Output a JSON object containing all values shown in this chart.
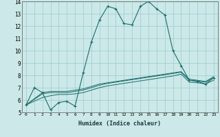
{
  "xlabel": "Humidex (Indice chaleur)",
  "bg_color": "#cce8e8",
  "grid_color": "#99cccc",
  "line_color": "#1a6b6b",
  "xlim": [
    -0.5,
    23.5
  ],
  "ylim": [
    5,
    14
  ],
  "xticks": [
    0,
    1,
    2,
    3,
    4,
    5,
    6,
    7,
    8,
    9,
    10,
    11,
    12,
    13,
    14,
    15,
    16,
    17,
    18,
    19,
    20,
    21,
    22,
    23
  ],
  "yticks": [
    5,
    6,
    7,
    8,
    9,
    10,
    11,
    12,
    13,
    14
  ],
  "line1_x": [
    0,
    1,
    2,
    3,
    4,
    5,
    6,
    7,
    8,
    9,
    10,
    11,
    12,
    13,
    14,
    15,
    16,
    17,
    18,
    19,
    20,
    21,
    22,
    23
  ],
  "line1_y": [
    5.6,
    7.0,
    6.6,
    5.2,
    5.8,
    5.9,
    5.5,
    8.2,
    10.7,
    12.5,
    13.6,
    13.4,
    12.2,
    12.1,
    13.6,
    14.0,
    13.4,
    12.9,
    10.0,
    8.8,
    7.6,
    7.5,
    7.3,
    7.8
  ],
  "line2_x": [
    0,
    2,
    3,
    4,
    5,
    6,
    7,
    8,
    9,
    10,
    11,
    12,
    13,
    14,
    15,
    16,
    17,
    18,
    19,
    20,
    21,
    22,
    23
  ],
  "line2_y": [
    5.6,
    6.6,
    6.7,
    6.7,
    6.7,
    6.8,
    6.9,
    7.1,
    7.3,
    7.4,
    7.5,
    7.6,
    7.7,
    7.8,
    7.9,
    8.0,
    8.1,
    8.2,
    8.3,
    7.7,
    7.6,
    7.5,
    7.9
  ],
  "line3_x": [
    0,
    2,
    3,
    4,
    5,
    6,
    7,
    8,
    9,
    10,
    11,
    12,
    13,
    14,
    15,
    16,
    17,
    18,
    19,
    20,
    21,
    22,
    23
  ],
  "line3_y": [
    5.6,
    6.5,
    6.6,
    6.6,
    6.6,
    6.7,
    6.8,
    7.0,
    7.2,
    7.35,
    7.45,
    7.55,
    7.65,
    7.75,
    7.85,
    7.95,
    8.05,
    8.15,
    8.25,
    7.6,
    7.55,
    7.45,
    7.8
  ],
  "line4_x": [
    0,
    2,
    3,
    4,
    5,
    6,
    7,
    8,
    9,
    10,
    11,
    12,
    13,
    14,
    15,
    16,
    17,
    18,
    19,
    20,
    21,
    22,
    23
  ],
  "line4_y": [
    5.6,
    6.2,
    6.35,
    6.45,
    6.45,
    6.5,
    6.6,
    6.8,
    7.0,
    7.15,
    7.25,
    7.35,
    7.45,
    7.55,
    7.65,
    7.75,
    7.85,
    7.95,
    8.1,
    7.45,
    7.4,
    7.3,
    7.6
  ]
}
